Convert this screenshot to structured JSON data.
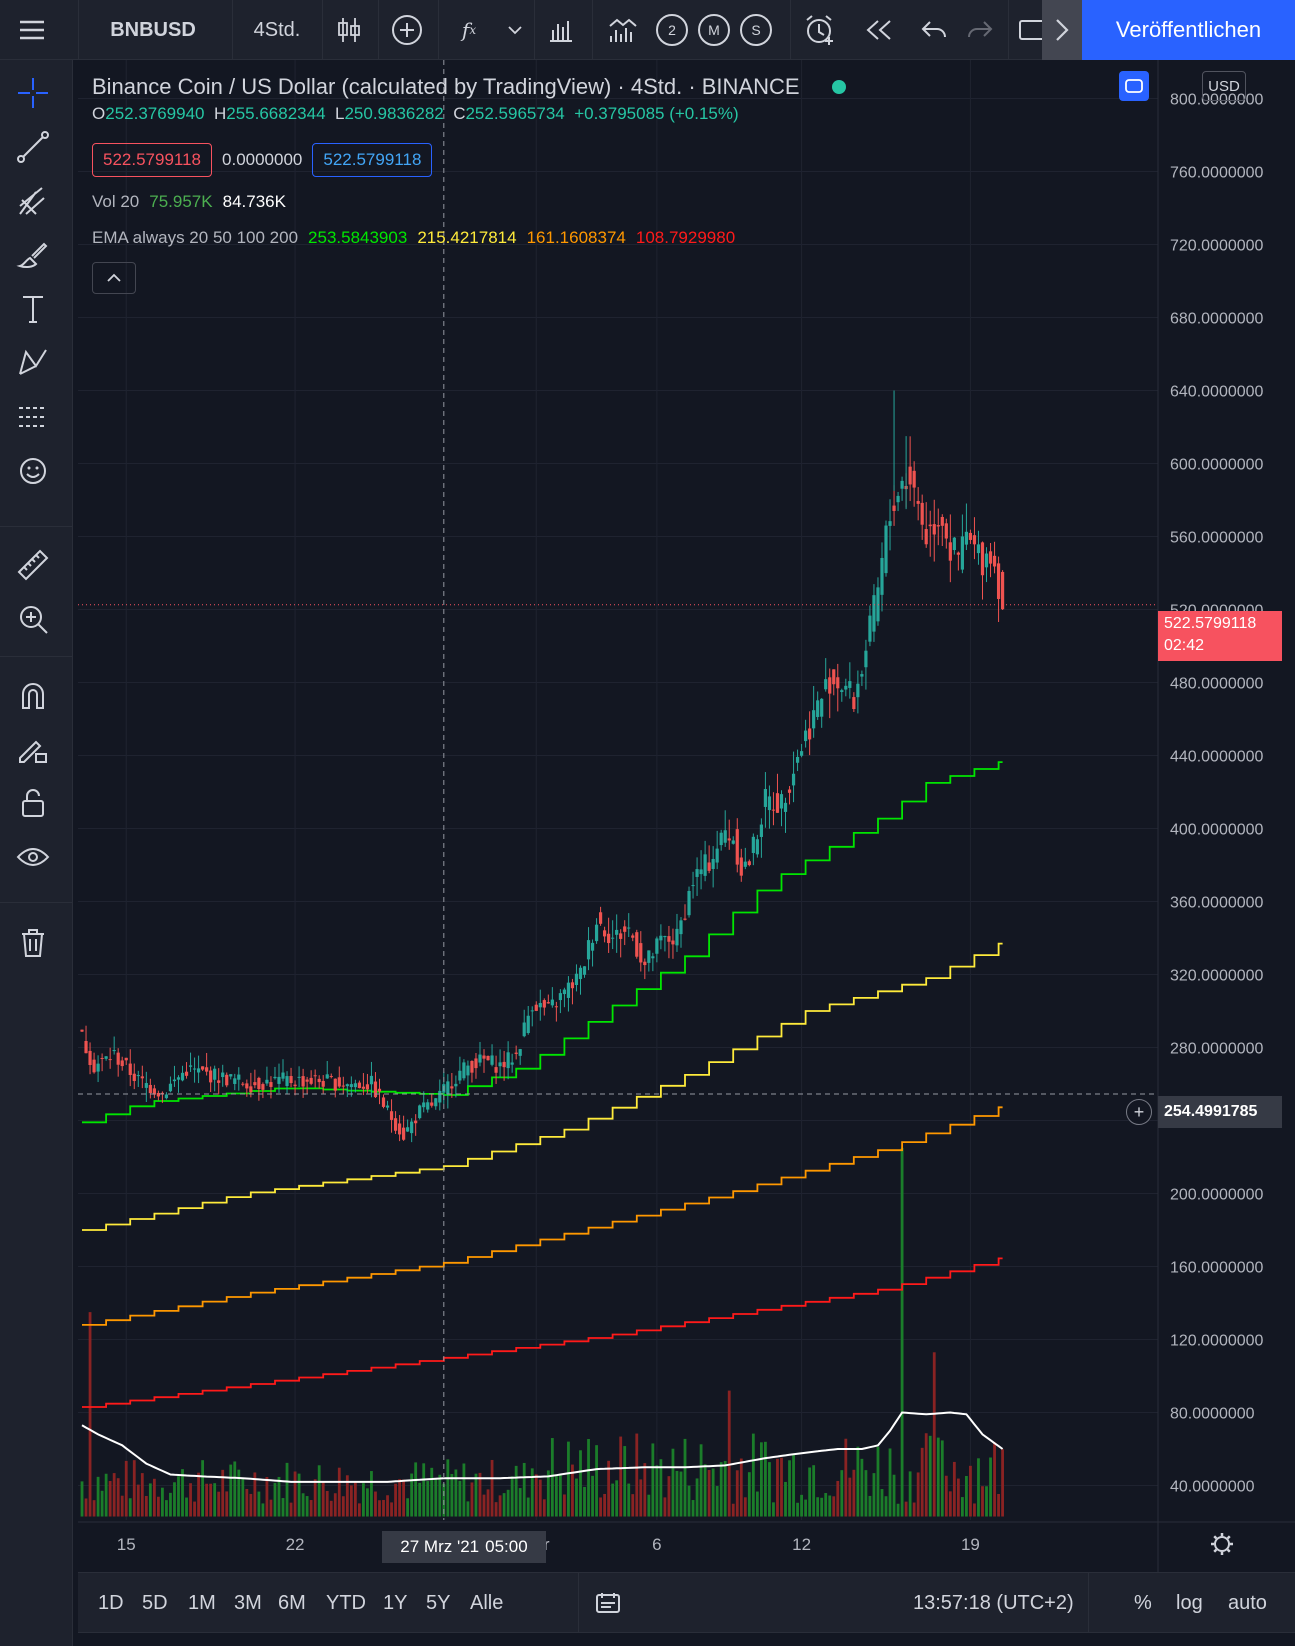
{
  "toolbar": {
    "symbol": "BNBUSD",
    "interval": "4Std.",
    "fx_glyph": "f",
    "fx_sub": "x",
    "layout_2": "2",
    "layout_m": "M",
    "layout_s": "S",
    "publish_label": "Veröffentlichen"
  },
  "legend": {
    "title": "Binance Coin / US Dollar (calculated by TradingView) · 4Std. · BINANCE",
    "o_label": "O",
    "o_value": "252.3769940",
    "h_label": "H",
    "h_value": "255.6682344",
    "l_label": "L",
    "l_value": "250.9836282",
    "c_label": "C",
    "c_value": "252.5965734",
    "change": "+0.3795085 (+0.15%)",
    "bid": "522.5799118",
    "spread": "0.0000000",
    "ask": "522.5799118",
    "vol_label": "Vol 20",
    "vol_value": "75.957K",
    "vol_ma": "84.736K",
    "ema_label": "EMA always 20 50 100 200",
    "ema20": "253.5843903",
    "ema50": "215.4217814",
    "ema100": "161.1608374",
    "ema200": "108.7929980"
  },
  "colors": {
    "up": "#26a69a",
    "down": "#ef5350",
    "ema20": "#00e600",
    "ema50": "#ffeb3b",
    "ema100": "#ff9800",
    "ema200": "#ff1a1a",
    "vol_up": "#1b7d2a",
    "vol_down": "#8a2323",
    "publish": "#2962ff"
  },
  "price_axis": {
    "currency": "USD",
    "last_price": "522.5799118",
    "countdown": "02:42",
    "crosshair_price": "254.4991785"
  },
  "time_axis": {
    "crosshair_date": "27 Mrz '21",
    "crosshair_time": "05:00"
  },
  "bottom": {
    "ranges": [
      "1D",
      "5D",
      "1M",
      "3M",
      "6M",
      "YTD",
      "1Y",
      "5Y",
      "Alle"
    ],
    "clock": "13:57:18 (UTC+2)",
    "percent": "%",
    "log": "log",
    "auto": "auto"
  },
  "chart_data": {
    "type": "candlestick",
    "title": "Binance Coin / US Dollar (calculated by TradingView) · 4Std. · BINANCE",
    "ylim": [
      20,
      820
    ],
    "y_ticks": [
      800,
      760,
      720,
      680,
      640,
      600,
      560,
      520,
      480,
      440,
      400,
      360,
      320,
      280,
      240,
      200,
      160,
      120,
      80,
      40
    ],
    "y_tick_labels": [
      "800.0000000",
      "760.0000000",
      "720.0000000",
      "680.0000000",
      "640.0000000",
      "600.0000000",
      "560.0000000",
      "520.0000000",
      "480.0000000",
      "440.0000000",
      "400.0000000",
      "360.0000000",
      "320.0000000",
      "280.0000000",
      "240.0000000",
      "200.0000000",
      "160.0000000",
      "120.0000000",
      "80.0000000",
      "40.0000000"
    ],
    "x_ticks": [
      {
        "label": "15",
        "bar": 11
      },
      {
        "label": "22",
        "bar": 53
      },
      {
        "label": "Apr",
        "bar": 113
      },
      {
        "label": "6",
        "bar": 143
      },
      {
        "label": "12",
        "bar": 179
      },
      {
        "label": "19",
        "bar": 221
      }
    ],
    "bar_count": 212,
    "crosshair_bar": 90,
    "crosshair_price": 254.4991785,
    "last_price": 522.5799118,
    "price_anchors": [
      [
        0,
        285
      ],
      [
        3,
        270
      ],
      [
        8,
        276
      ],
      [
        14,
        262
      ],
      [
        20,
        255
      ],
      [
        26,
        268
      ],
      [
        34,
        264
      ],
      [
        42,
        260
      ],
      [
        50,
        262
      ],
      [
        58,
        262
      ],
      [
        66,
        260
      ],
      [
        72,
        260
      ],
      [
        76,
        245
      ],
      [
        80,
        232
      ],
      [
        84,
        245
      ],
      [
        88,
        250
      ],
      [
        92,
        262
      ],
      [
        96,
        270
      ],
      [
        100,
        273
      ],
      [
        104,
        270
      ],
      [
        108,
        276
      ],
      [
        112,
        305
      ],
      [
        116,
        300
      ],
      [
        120,
        310
      ],
      [
        124,
        320
      ],
      [
        128,
        350
      ],
      [
        132,
        340
      ],
      [
        136,
        345
      ],
      [
        140,
        325
      ],
      [
        144,
        338
      ],
      [
        148,
        340
      ],
      [
        152,
        372
      ],
      [
        156,
        382
      ],
      [
        160,
        398
      ],
      [
        162,
        395
      ],
      [
        164,
        378
      ],
      [
        166,
        382
      ],
      [
        170,
        415
      ],
      [
        174,
        414
      ],
      [
        178,
        440
      ],
      [
        182,
        462
      ],
      [
        186,
        482
      ],
      [
        190,
        478
      ],
      [
        192,
        470
      ],
      [
        196,
        508
      ],
      [
        198,
        530
      ],
      [
        200,
        560
      ],
      [
        202,
        580
      ],
      [
        204,
        590
      ],
      [
        206,
        592
      ],
      [
        208,
        578
      ],
      [
        210,
        560
      ],
      [
        212,
        568
      ],
      [
        214,
        572
      ],
      [
        216,
        552
      ],
      [
        218,
        548
      ],
      [
        220,
        560
      ],
      [
        222,
        552
      ],
      [
        224,
        548
      ],
      [
        226,
        552
      ],
      [
        228,
        535
      ],
      [
        229,
        523
      ]
    ],
    "series": [
      {
        "name": "EMA 20",
        "anchors": [
          [
            0,
            239
          ],
          [
            15,
            250
          ],
          [
            50,
            258
          ],
          [
            90,
            254
          ],
          [
            110,
            270
          ],
          [
            130,
            300
          ],
          [
            150,
            330
          ],
          [
            170,
            370
          ],
          [
            190,
            395
          ],
          [
            200,
            408
          ],
          [
            210,
            425
          ],
          [
            229,
            437
          ]
        ]
      },
      {
        "name": "EMA 50",
        "anchors": [
          [
            0,
            180
          ],
          [
            40,
            200
          ],
          [
            90,
            215
          ],
          [
            120,
            235
          ],
          [
            150,
            265
          ],
          [
            180,
            300
          ],
          [
            210,
            318
          ],
          [
            229,
            338
          ]
        ]
      },
      {
        "name": "EMA 100",
        "anchors": [
          [
            0,
            128
          ],
          [
            40,
            145
          ],
          [
            90,
            162
          ],
          [
            120,
            178
          ],
          [
            160,
            200
          ],
          [
            200,
            225
          ],
          [
            229,
            248
          ]
        ]
      },
      {
        "name": "EMA 200",
        "anchors": [
          [
            0,
            83
          ],
          [
            40,
            95
          ],
          [
            90,
            110
          ],
          [
            130,
            122
          ],
          [
            170,
            137
          ],
          [
            200,
            148
          ],
          [
            229,
            165
          ]
        ]
      }
    ],
    "volume_ma_anchors": [
      [
        0,
        73
      ],
      [
        4,
        68
      ],
      [
        10,
        62
      ],
      [
        16,
        52
      ],
      [
        22,
        46
      ],
      [
        30,
        45
      ],
      [
        40,
        44
      ],
      [
        52,
        42
      ],
      [
        64,
        42
      ],
      [
        76,
        42
      ],
      [
        90,
        44
      ],
      [
        104,
        44
      ],
      [
        116,
        45
      ],
      [
        128,
        49
      ],
      [
        140,
        50
      ],
      [
        150,
        50
      ],
      [
        160,
        51
      ],
      [
        170,
        55
      ],
      [
        180,
        58
      ],
      [
        188,
        60
      ],
      [
        194,
        60
      ],
      [
        198,
        62
      ],
      [
        201,
        70
      ],
      [
        204,
        80
      ],
      [
        210,
        79
      ],
      [
        216,
        80
      ],
      [
        220,
        79
      ],
      [
        224,
        68
      ],
      [
        229,
        60
      ]
    ],
    "volume_spikes": [
      {
        "bar": 2,
        "value": 135,
        "up": false
      },
      {
        "bar": 204,
        "value": 225,
        "up": true
      },
      {
        "bar": 212,
        "value": 113,
        "up": false
      },
      {
        "bar": 161,
        "value": 92,
        "up": false
      }
    ]
  }
}
